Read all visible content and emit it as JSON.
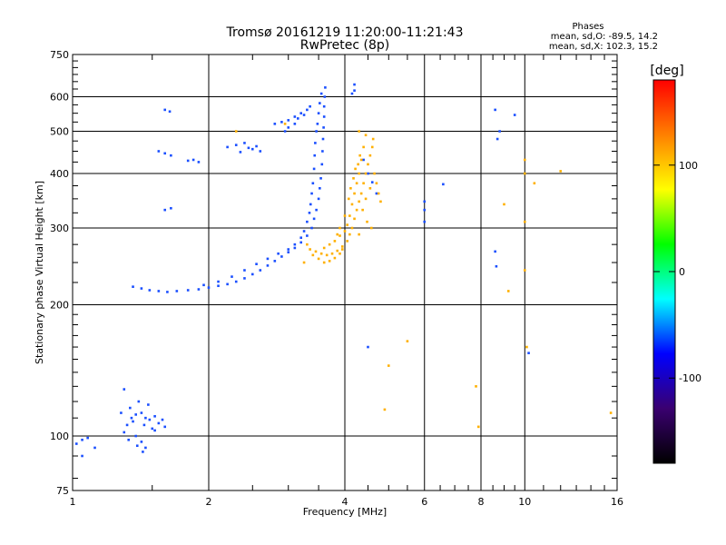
{
  "chart_data": {
    "type": "scatter",
    "title": "Tromsø 20161219 11:20:00-11:21:43",
    "subtitle": "RwPretec (8p)",
    "xlabel": "Frequency [MHz]",
    "ylabel": "Stationary phase Virtual Height [km]",
    "x_scale": "log",
    "y_scale": "log",
    "xlim": [
      1,
      16
    ],
    "ylim": [
      75,
      750
    ],
    "xticks": [
      1,
      2,
      4,
      6,
      8,
      10,
      16
    ],
    "yticks": [
      75,
      100,
      200,
      300,
      400,
      500,
      600,
      750
    ],
    "grid": true,
    "phases": {
      "title": "Phases",
      "line_o": "mean, sd,O: -89.5, 14.2",
      "line_x": "mean, sd,X: 102.3, 15.2"
    },
    "colorbar": {
      "label": "[deg]",
      "range": [
        -180,
        180
      ],
      "ticks": [
        -100,
        0,
        100
      ],
      "colors": [
        "#000000",
        "#3a0070",
        "#0000ff",
        "#00ffff",
        "#00ff00",
        "#ffff00",
        "#ff8000",
        "#ff0000"
      ]
    },
    "series": [
      {
        "name": "O",
        "color": "#1a4fff",
        "points": [
          [
            1.02,
            96
          ],
          [
            1.05,
            98
          ],
          [
            1.08,
            99
          ],
          [
            1.12,
            94
          ],
          [
            1.05,
            90
          ],
          [
            1.3,
            102
          ],
          [
            1.32,
            106
          ],
          [
            1.35,
            110
          ],
          [
            1.38,
            112
          ],
          [
            1.42,
            113
          ],
          [
            1.45,
            110
          ],
          [
            1.48,
            109
          ],
          [
            1.52,
            111
          ],
          [
            1.55,
            107
          ],
          [
            1.6,
            105
          ],
          [
            1.38,
            100
          ],
          [
            1.42,
            97
          ],
          [
            1.45,
            94
          ],
          [
            1.4,
            120
          ],
          [
            1.47,
            118
          ],
          [
            1.36,
            108
          ],
          [
            1.44,
            106
          ],
          [
            1.5,
            104
          ],
          [
            1.33,
            98
          ],
          [
            1.39,
            95
          ],
          [
            1.43,
            92
          ],
          [
            1.28,
            113
          ],
          [
            1.34,
            116
          ],
          [
            1.52,
            103
          ],
          [
            1.58,
            109
          ],
          [
            1.36,
            220
          ],
          [
            1.42,
            218
          ],
          [
            1.48,
            216
          ],
          [
            1.55,
            215
          ],
          [
            1.62,
            214
          ],
          [
            1.7,
            215
          ],
          [
            1.8,
            216
          ],
          [
            1.9,
            217
          ],
          [
            2.0,
            219
          ],
          [
            2.1,
            221
          ],
          [
            2.2,
            223
          ],
          [
            2.3,
            226
          ],
          [
            2.4,
            230
          ],
          [
            2.5,
            235
          ],
          [
            2.6,
            240
          ],
          [
            2.7,
            246
          ],
          [
            2.8,
            252
          ],
          [
            2.9,
            258
          ],
          [
            3.0,
            264
          ],
          [
            3.1,
            270
          ],
          [
            3.2,
            278
          ],
          [
            3.3,
            288
          ],
          [
            3.38,
            300
          ],
          [
            3.42,
            315
          ],
          [
            3.46,
            330
          ],
          [
            3.5,
            350
          ],
          [
            3.52,
            370
          ],
          [
            3.54,
            390
          ],
          [
            3.56,
            420
          ],
          [
            3.57,
            450
          ],
          [
            3.58,
            480
          ],
          [
            3.59,
            510
          ],
          [
            3.6,
            540
          ],
          [
            3.6,
            570
          ],
          [
            3.61,
            600
          ],
          [
            3.62,
            630
          ],
          [
            3.55,
            610
          ],
          [
            3.52,
            580
          ],
          [
            3.5,
            550
          ],
          [
            3.48,
            520
          ],
          [
            3.46,
            500
          ],
          [
            3.44,
            470
          ],
          [
            3.43,
            440
          ],
          [
            3.42,
            410
          ],
          [
            3.4,
            380
          ],
          [
            3.38,
            360
          ],
          [
            3.36,
            340
          ],
          [
            3.34,
            325
          ],
          [
            3.3,
            310
          ],
          [
            3.25,
            295
          ],
          [
            3.2,
            285
          ],
          [
            3.1,
            275
          ],
          [
            3.0,
            268
          ],
          [
            2.85,
            262
          ],
          [
            2.7,
            255
          ],
          [
            2.55,
            248
          ],
          [
            2.4,
            240
          ],
          [
            2.25,
            232
          ],
          [
            2.1,
            226
          ],
          [
            1.95,
            222
          ],
          [
            1.6,
            560
          ],
          [
            1.64,
            555
          ],
          [
            1.55,
            450
          ],
          [
            1.6,
            445
          ],
          [
            1.65,
            440
          ],
          [
            1.85,
            430
          ],
          [
            1.9,
            425
          ],
          [
            1.8,
            428
          ],
          [
            1.6,
            330
          ],
          [
            1.65,
            333
          ],
          [
            2.2,
            460
          ],
          [
            2.3,
            465
          ],
          [
            2.4,
            470
          ],
          [
            2.5,
            455
          ],
          [
            2.6,
            450
          ],
          [
            2.35,
            448
          ],
          [
            2.45,
            458
          ],
          [
            2.55,
            462
          ],
          [
            2.8,
            520
          ],
          [
            2.9,
            525
          ],
          [
            3.0,
            530
          ],
          [
            3.1,
            540
          ],
          [
            3.2,
            550
          ],
          [
            3.3,
            560
          ],
          [
            3.35,
            570
          ],
          [
            3.1,
            520
          ],
          [
            3.0,
            510
          ],
          [
            2.95,
            500
          ],
          [
            3.25,
            545
          ],
          [
            3.15,
            535
          ],
          [
            4.2,
            640
          ],
          [
            4.4,
            430
          ],
          [
            4.5,
            400
          ],
          [
            4.6,
            382
          ],
          [
            4.7,
            360
          ],
          [
            6.0,
            345
          ],
          [
            6.0,
            330
          ],
          [
            6.0,
            310
          ],
          [
            8.6,
            560
          ],
          [
            8.7,
            480
          ],
          [
            8.8,
            500
          ],
          [
            8.6,
            265
          ],
          [
            8.65,
            245
          ],
          [
            4.5,
            160
          ],
          [
            9.5,
            545
          ],
          [
            6.6,
            378
          ],
          [
            1.3,
            128
          ],
          [
            10.2,
            155
          ],
          [
            4.2,
            620
          ],
          [
            4.15,
            610
          ]
        ]
      },
      {
        "name": "X",
        "color": "#ffb000",
        "points": [
          [
            3.45,
            265
          ],
          [
            3.55,
            262
          ],
          [
            3.65,
            260
          ],
          [
            3.75,
            262
          ],
          [
            3.85,
            266
          ],
          [
            3.95,
            272
          ],
          [
            4.05,
            280
          ],
          [
            4.1,
            290
          ],
          [
            4.15,
            300
          ],
          [
            4.2,
            315
          ],
          [
            4.25,
            330
          ],
          [
            4.3,
            345
          ],
          [
            4.35,
            360
          ],
          [
            4.4,
            380
          ],
          [
            4.45,
            400
          ],
          [
            4.5,
            420
          ],
          [
            4.55,
            440
          ],
          [
            4.6,
            460
          ],
          [
            4.62,
            480
          ],
          [
            3.6,
            270
          ],
          [
            3.7,
            275
          ],
          [
            3.8,
            280
          ],
          [
            3.9,
            288
          ],
          [
            4.0,
            295
          ],
          [
            4.05,
            305
          ],
          [
            4.1,
            320
          ],
          [
            4.15,
            340
          ],
          [
            4.2,
            360
          ],
          [
            4.25,
            380
          ],
          [
            4.3,
            400
          ],
          [
            4.35,
            430
          ],
          [
            4.4,
            460
          ],
          [
            4.45,
            490
          ],
          [
            4.0,
            320
          ],
          [
            4.08,
            350
          ],
          [
            4.12,
            370
          ],
          [
            4.18,
            390
          ],
          [
            4.22,
            410
          ],
          [
            4.28,
            420
          ],
          [
            4.32,
            440
          ],
          [
            3.5,
            255
          ],
          [
            3.4,
            260
          ],
          [
            3.35,
            268
          ],
          [
            3.3,
            275
          ],
          [
            3.25,
            250
          ],
          [
            3.6,
            250
          ],
          [
            3.7,
            252
          ],
          [
            3.8,
            256
          ],
          [
            3.9,
            262
          ],
          [
            3.95,
            268
          ],
          [
            4.7,
            380
          ],
          [
            4.75,
            360
          ],
          [
            4.8,
            345
          ],
          [
            4.65,
            400
          ],
          [
            4.55,
            370
          ],
          [
            4.45,
            350
          ],
          [
            4.38,
            330
          ],
          [
            4.48,
            310
          ],
          [
            4.58,
            300
          ],
          [
            4.3,
            290
          ],
          [
            10.0,
            400
          ],
          [
            10.0,
            310
          ],
          [
            10.0,
            430
          ],
          [
            10.0,
            240
          ],
          [
            9.0,
            340
          ],
          [
            5.5,
            165
          ],
          [
            5.0,
            145
          ],
          [
            4.9,
            115
          ],
          [
            2.3,
            500
          ],
          [
            2.95,
            520
          ],
          [
            7.8,
            130
          ],
          [
            7.9,
            105
          ],
          [
            10.1,
            160
          ],
          [
            15.5,
            113
          ],
          [
            4.3,
            500
          ],
          [
            12.0,
            405
          ],
          [
            9.2,
            215
          ],
          [
            10.5,
            380
          ],
          [
            3.9,
            300
          ],
          [
            3.85,
            290
          ]
        ]
      }
    ]
  }
}
